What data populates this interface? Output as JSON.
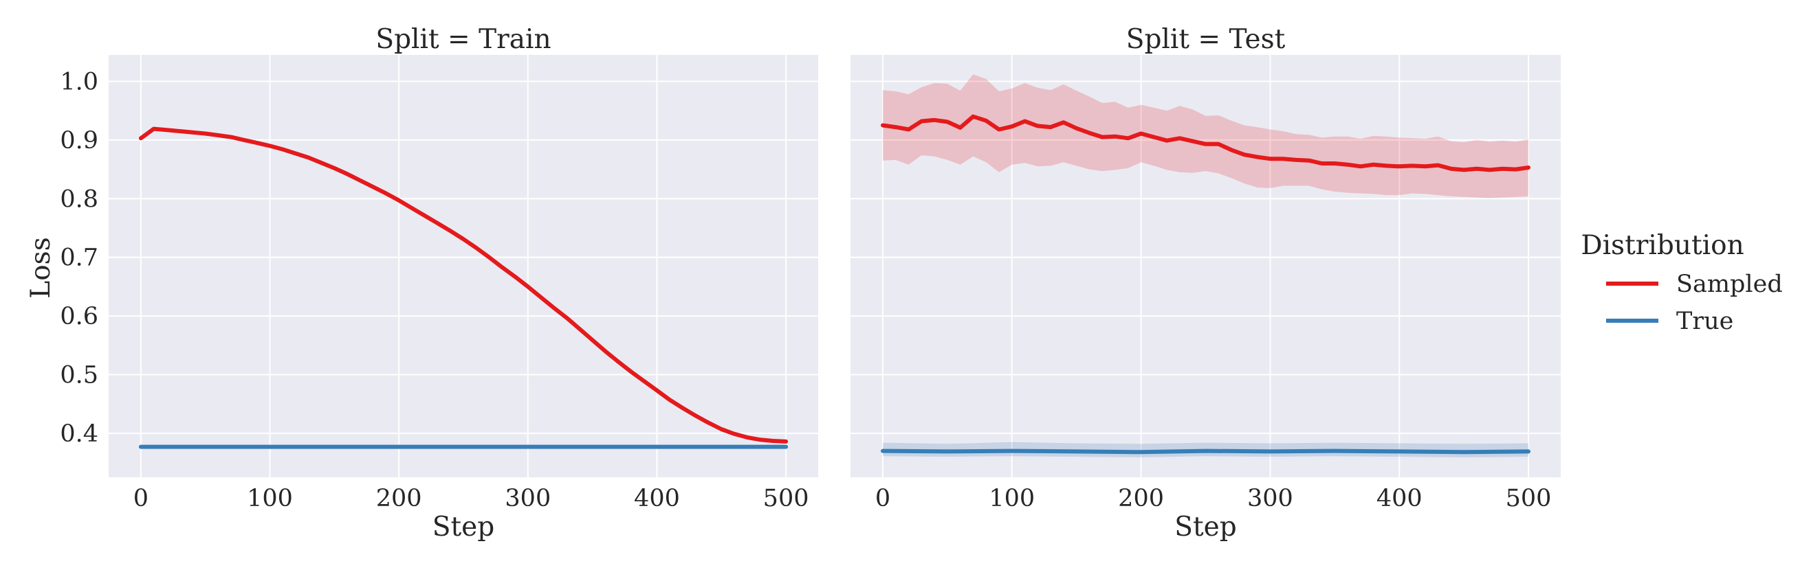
{
  "chart_data": {
    "type": "line",
    "legend": {
      "title": "Distribution",
      "placement": "right",
      "entries": [
        {
          "name": "Sampled",
          "color": "#e41a1c"
        },
        {
          "name": "True",
          "color": "#377eb8"
        }
      ]
    },
    "y_axis": {
      "label": "Loss",
      "ylim": [
        0.325,
        1.045
      ],
      "ticks": [
        0.4,
        0.5,
        0.6,
        0.7,
        0.8,
        0.9,
        1.0
      ],
      "tick_labels": [
        "0.4",
        "0.5",
        "0.6",
        "0.7",
        "0.8",
        "0.9",
        "1.0"
      ],
      "shared": true
    },
    "grid": true,
    "background": "#eaeaf2",
    "panels": [
      {
        "title": "Split = Train",
        "xlabel": "Step",
        "xlim": [
          -25,
          525
        ],
        "xticks": [
          0,
          100,
          200,
          300,
          400,
          500
        ],
        "xtick_labels": [
          "0",
          "100",
          "200",
          "300",
          "400",
          "500"
        ],
        "series": [
          {
            "name": "Sampled",
            "x": [
              0,
              10,
              20,
              30,
              40,
              50,
              60,
              70,
              80,
              90,
              100,
              110,
              120,
              130,
              140,
              150,
              160,
              170,
              180,
              190,
              200,
              210,
              220,
              230,
              240,
              250,
              260,
              270,
              280,
              290,
              300,
              310,
              320,
              330,
              340,
              350,
              360,
              370,
              380,
              390,
              400,
              410,
              420,
              430,
              440,
              450,
              460,
              470,
              480,
              490,
              500
            ],
            "y": [
              0.903,
              0.919,
              0.917,
              0.915,
              0.913,
              0.911,
              0.908,
              0.905,
              0.9,
              0.895,
              0.89,
              0.884,
              0.877,
              0.87,
              0.861,
              0.852,
              0.842,
              0.831,
              0.82,
              0.809,
              0.797,
              0.784,
              0.771,
              0.758,
              0.745,
              0.731,
              0.716,
              0.7,
              0.683,
              0.667,
              0.65,
              0.632,
              0.614,
              0.597,
              0.578,
              0.559,
              0.54,
              0.522,
              0.505,
              0.489,
              0.473,
              0.457,
              0.443,
              0.43,
              0.418,
              0.407,
              0.399,
              0.393,
              0.389,
              0.387,
              0.386
            ]
          },
          {
            "name": "True",
            "x": [
              0,
              500
            ],
            "y": [
              0.377,
              0.377
            ]
          }
        ]
      },
      {
        "title": "Split = Test",
        "xlabel": "Step",
        "xlim": [
          -25,
          525
        ],
        "xticks": [
          0,
          100,
          200,
          300,
          400,
          500
        ],
        "xtick_labels": [
          "0",
          "100",
          "200",
          "300",
          "400",
          "500"
        ],
        "series": [
          {
            "name": "Sampled",
            "x": [
              0,
              10,
              20,
              30,
              40,
              50,
              60,
              70,
              80,
              90,
              100,
              110,
              120,
              130,
              140,
              150,
              160,
              170,
              180,
              190,
              200,
              210,
              220,
              230,
              240,
              250,
              260,
              270,
              280,
              290,
              300,
              310,
              320,
              330,
              340,
              350,
              360,
              370,
              380,
              390,
              400,
              410,
              420,
              430,
              440,
              450,
              460,
              470,
              480,
              490,
              500
            ],
            "y": [
              0.925,
              0.922,
              0.918,
              0.932,
              0.934,
              0.931,
              0.921,
              0.94,
              0.933,
              0.918,
              0.923,
              0.932,
              0.924,
              0.922,
              0.93,
              0.92,
              0.912,
              0.905,
              0.906,
              0.903,
              0.911,
              0.905,
              0.899,
              0.903,
              0.898,
              0.893,
              0.893,
              0.883,
              0.875,
              0.871,
              0.868,
              0.868,
              0.866,
              0.865,
              0.86,
              0.86,
              0.858,
              0.855,
              0.858,
              0.856,
              0.855,
              0.856,
              0.855,
              0.857,
              0.851,
              0.849,
              0.851,
              0.849,
              0.851,
              0.85,
              0.853
            ],
            "ci_lower": [
              0.865,
              0.866,
              0.858,
              0.874,
              0.872,
              0.866,
              0.858,
              0.872,
              0.862,
              0.845,
              0.858,
              0.861,
              0.855,
              0.856,
              0.862,
              0.856,
              0.85,
              0.847,
              0.849,
              0.852,
              0.862,
              0.856,
              0.849,
              0.845,
              0.844,
              0.847,
              0.843,
              0.835,
              0.826,
              0.819,
              0.818,
              0.822,
              0.822,
              0.822,
              0.816,
              0.812,
              0.81,
              0.809,
              0.808,
              0.806,
              0.806,
              0.809,
              0.808,
              0.806,
              0.804,
              0.803,
              0.802,
              0.801,
              0.802,
              0.803,
              0.804
            ],
            "ci_upper": [
              0.985,
              0.983,
              0.978,
              0.99,
              0.997,
              0.996,
              0.984,
              1.012,
              1.004,
              0.983,
              0.988,
              0.997,
              0.989,
              0.985,
              0.995,
              0.984,
              0.974,
              0.963,
              0.965,
              0.955,
              0.96,
              0.955,
              0.95,
              0.958,
              0.952,
              0.941,
              0.942,
              0.933,
              0.925,
              0.922,
              0.918,
              0.915,
              0.91,
              0.909,
              0.904,
              0.906,
              0.906,
              0.902,
              0.907,
              0.906,
              0.904,
              0.903,
              0.902,
              0.906,
              0.898,
              0.896,
              0.9,
              0.897,
              0.899,
              0.897,
              0.901
            ]
          },
          {
            "name": "True",
            "x": [
              0,
              50,
              100,
              150,
              200,
              250,
              300,
              350,
              400,
              450,
              500
            ],
            "y": [
              0.37,
              0.369,
              0.37,
              0.369,
              0.368,
              0.37,
              0.369,
              0.37,
              0.369,
              0.368,
              0.369
            ],
            "ci_lower": [
              0.361,
              0.36,
              0.361,
              0.36,
              0.359,
              0.361,
              0.36,
              0.361,
              0.36,
              0.359,
              0.36
            ],
            "ci_upper": [
              0.384,
              0.382,
              0.385,
              0.383,
              0.382,
              0.384,
              0.383,
              0.384,
              0.383,
              0.382,
              0.383
            ]
          }
        ]
      }
    ]
  }
}
